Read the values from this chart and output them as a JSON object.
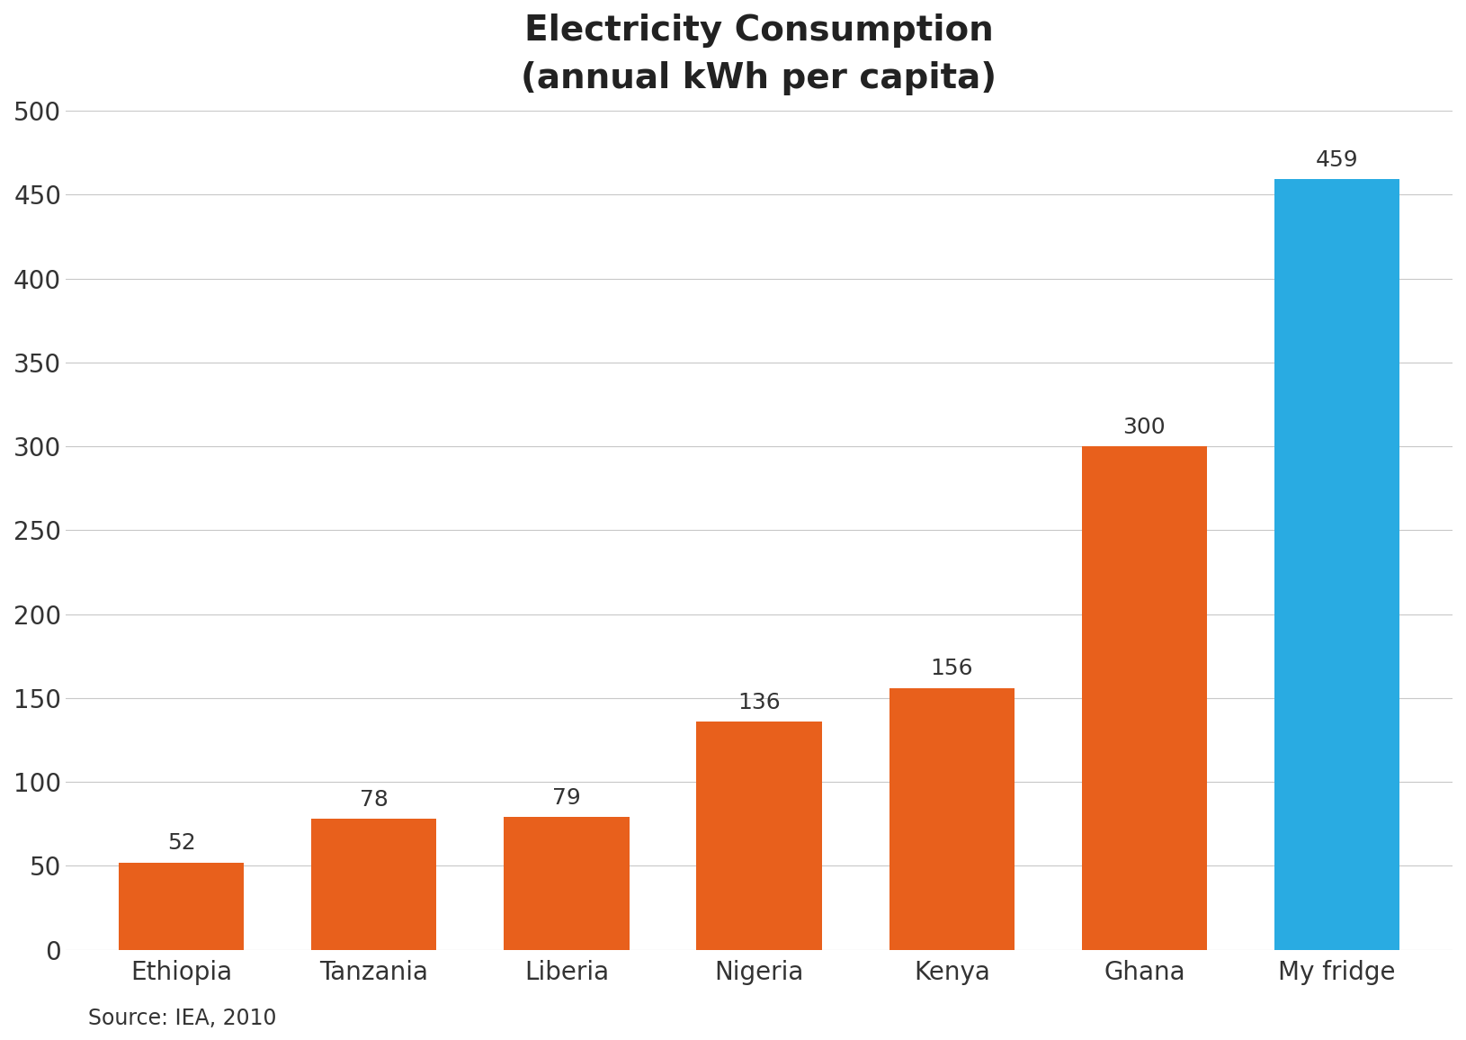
{
  "title_line1": "Electricity Consumption",
  "title_line2": "(annual kWh per capita)",
  "categories": [
    "Ethiopia",
    "Tanzania",
    "Liberia",
    "Nigeria",
    "Kenya",
    "Ghana",
    "My fridge"
  ],
  "values": [
    52,
    78,
    79,
    136,
    156,
    300,
    459
  ],
  "bar_colors": [
    "#E8601C",
    "#E8601C",
    "#E8601C",
    "#E8601C",
    "#E8601C",
    "#E8601C",
    "#29ABE2"
  ],
  "ylim": [
    0,
    500
  ],
  "yticks": [
    0,
    50,
    100,
    150,
    200,
    250,
    300,
    350,
    400,
    450,
    500
  ],
  "source_text": "Source: IEA, 2010",
  "background_color": "#FFFFFF",
  "grid_color": "#C8C8C8",
  "title_fontsize": 28,
  "label_fontsize": 20,
  "tick_fontsize": 20,
  "source_fontsize": 17,
  "value_fontsize": 18,
  "bar_width": 0.65
}
